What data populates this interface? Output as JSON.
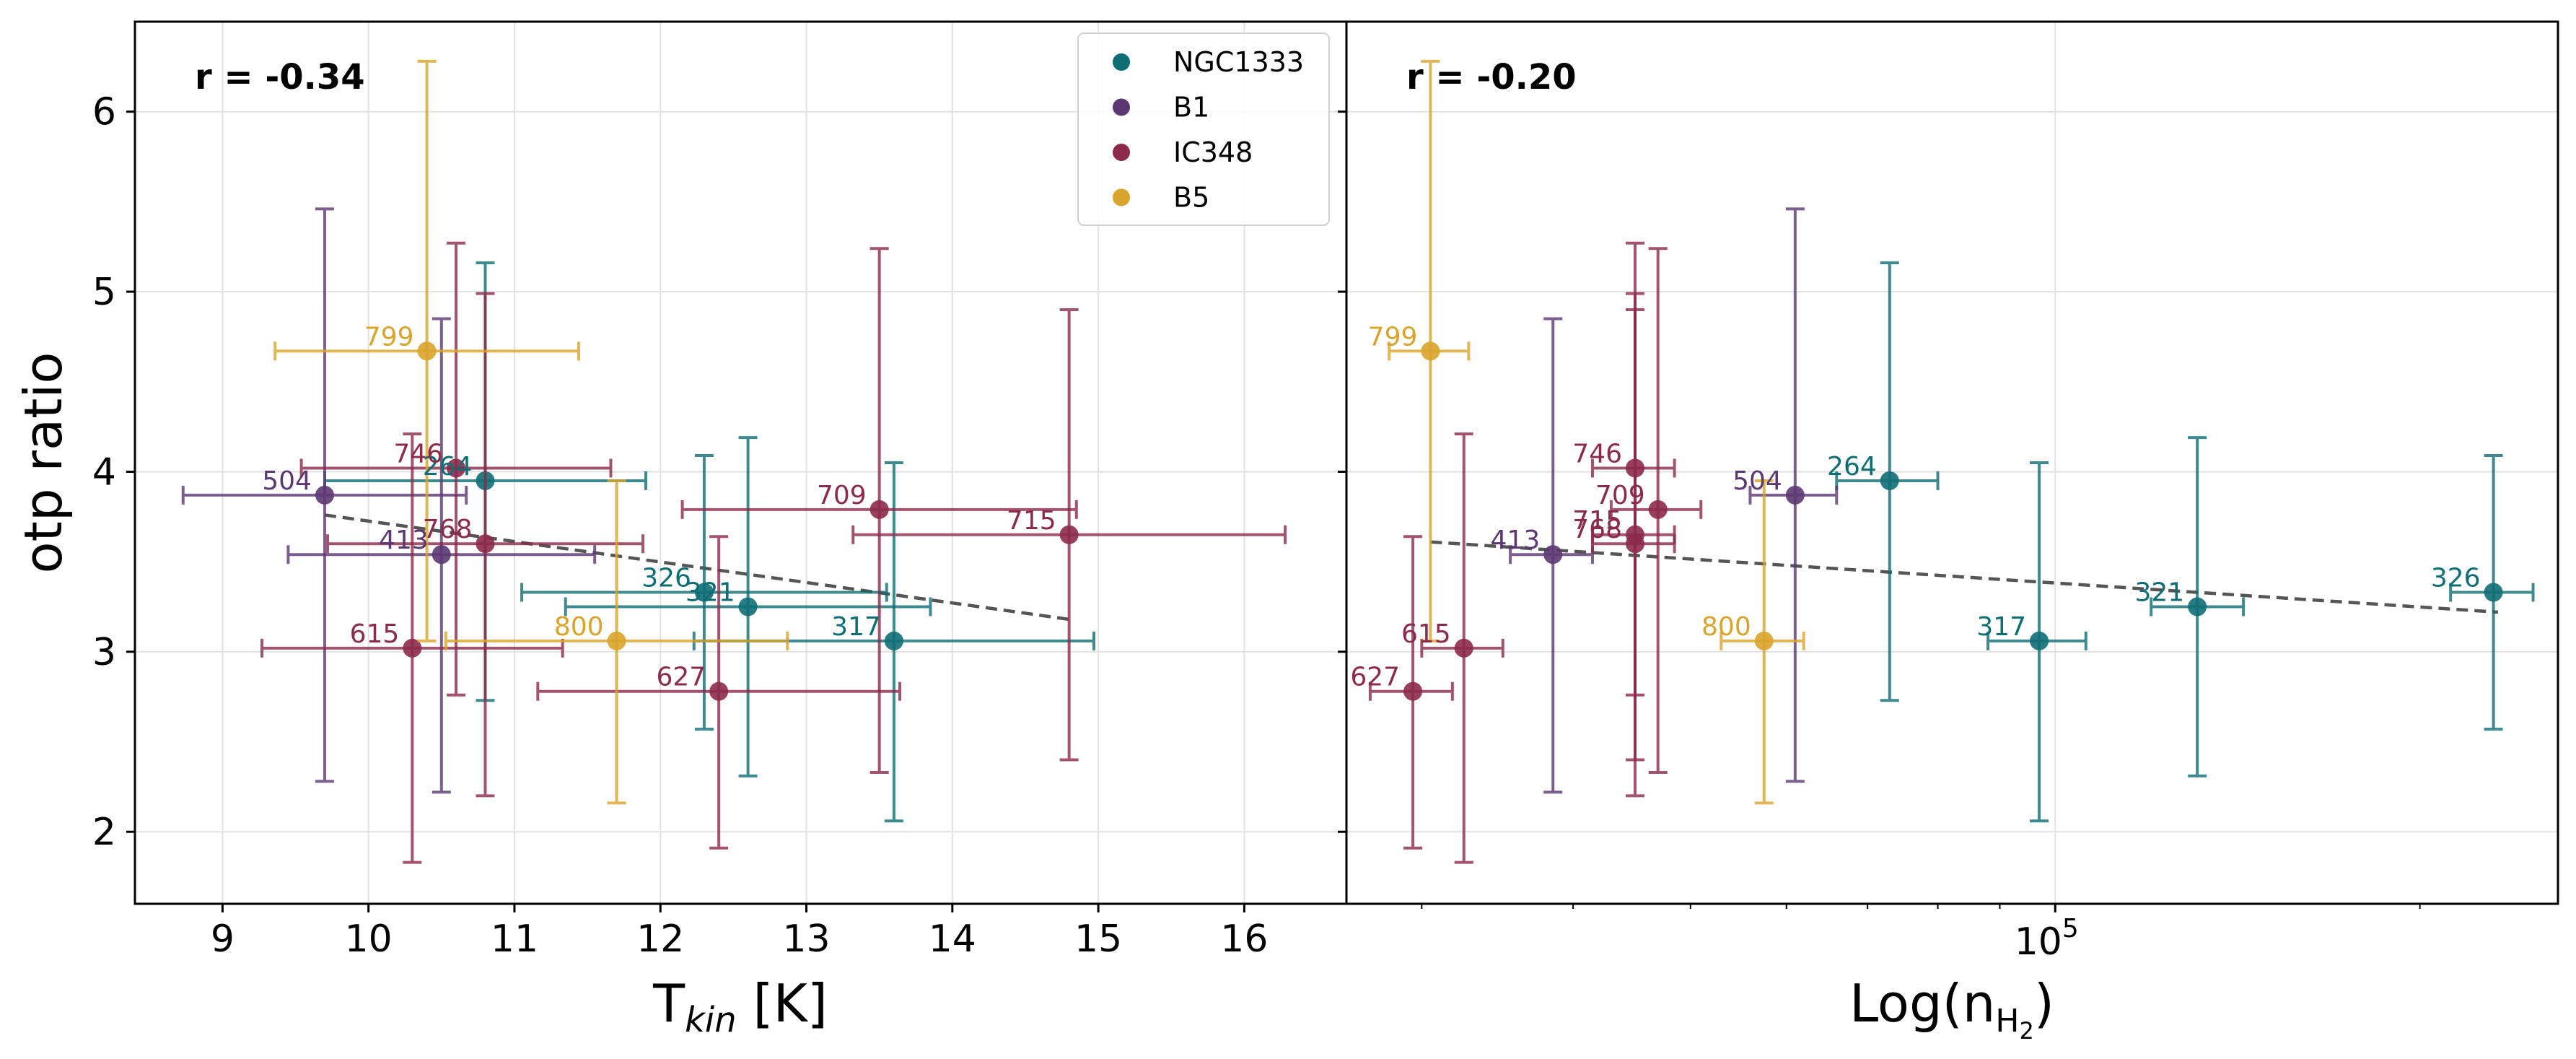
{
  "chart_data": [
    {
      "type": "scatter",
      "panel": "left",
      "xlabel": "T_kin [K]",
      "xlabel_main": "T",
      "xlabel_sub": "kin",
      "xlabel_suffix": " [K]",
      "ylabel": "otp ratio",
      "xlim": [
        8.4,
        16.7
      ],
      "ylim": [
        1.6,
        6.5
      ],
      "xscale": "linear",
      "xticks": [
        9,
        10,
        11,
        12,
        13,
        14,
        15,
        16
      ],
      "xtick_labels": [
        "9",
        "10",
        "11",
        "12",
        "13",
        "14",
        "15",
        "16"
      ],
      "yticks": [
        2,
        3,
        4,
        5,
        6
      ],
      "ytick_labels": [
        "2",
        "3",
        "4",
        "5",
        "6"
      ],
      "grid": true,
      "annotation": "r = -0.34",
      "trend": {
        "x": [
          9.7,
          14.8
        ],
        "y": [
          3.76,
          3.18
        ]
      },
      "series": [
        {
          "name": "NGC1333",
          "color": "#0e6e74",
          "points": [
            {
              "label": "264",
              "x": 10.8,
              "y": 3.95,
              "xerr": 1.1,
              "ylo": 2.73,
              "yhi": 5.16
            },
            {
              "label": "326",
              "x": 12.3,
              "y": 3.33,
              "xerr": 1.25,
              "ylo": 2.57,
              "yhi": 4.09
            },
            {
              "label": "321",
              "x": 12.6,
              "y": 3.25,
              "xerr": 1.25,
              "ylo": 2.31,
              "yhi": 4.19
            },
            {
              "label": "317",
              "x": 13.6,
              "y": 3.06,
              "xerr": 1.37,
              "ylo": 2.06,
              "yhi": 4.05
            }
          ]
        },
        {
          "name": "B1",
          "color": "#5c3872",
          "points": [
            {
              "label": "504",
              "x": 9.7,
              "y": 3.87,
              "xerr": 0.97,
              "ylo": 2.28,
              "yhi": 5.46
            },
            {
              "label": "413",
              "x": 10.5,
              "y": 3.54,
              "xerr": 1.05,
              "ylo": 2.22,
              "yhi": 4.85
            }
          ]
        },
        {
          "name": "IC348",
          "color": "#8c2a4a",
          "points": [
            {
              "label": "746",
              "x": 10.6,
              "y": 4.02,
              "xerr": 1.06,
              "ylo": 2.76,
              "yhi": 5.27
            },
            {
              "label": "768",
              "x": 10.8,
              "y": 3.6,
              "xerr": 1.08,
              "ylo": 2.2,
              "yhi": 4.99
            },
            {
              "label": "709",
              "x": 13.5,
              "y": 3.79,
              "xerr": 1.35,
              "ylo": 2.33,
              "yhi": 5.24
            },
            {
              "label": "715",
              "x": 14.8,
              "y": 3.65,
              "xerr": 1.48,
              "ylo": 2.4,
              "yhi": 4.9
            },
            {
              "label": "615",
              "x": 10.3,
              "y": 3.02,
              "xerr": 1.03,
              "ylo": 1.83,
              "yhi": 4.21
            },
            {
              "label": "627",
              "x": 12.4,
              "y": 2.78,
              "xerr": 1.24,
              "ylo": 1.91,
              "yhi": 3.64
            }
          ]
        },
        {
          "name": "B5",
          "color": "#d9a42c",
          "points": [
            {
              "label": "799",
              "x": 10.4,
              "y": 4.67,
              "xerr": 1.04,
              "ylo": 3.06,
              "yhi": 6.28
            },
            {
              "label": "800",
              "x": 11.7,
              "y": 3.06,
              "xerr": 1.17,
              "ylo": 2.16,
              "yhi": 3.95
            }
          ]
        }
      ]
    },
    {
      "type": "scatter",
      "panel": "right",
      "xlabel": "Log(n_H2)",
      "xlabel_main": "Log(n",
      "xlabel_sub": "H",
      "xlabel_subsub": "2",
      "xlabel_suffix": ")",
      "ylabel": "",
      "xlim": [
        26000,
        260000
      ],
      "ylim": [
        1.6,
        6.5
      ],
      "xscale": "log",
      "xticks": [
        100000
      ],
      "xtick_labels": [
        "10",
        "5"
      ],
      "grid": true,
      "annotation": "r = -0.20",
      "trend": {
        "x": [
          30500,
          232000
        ],
        "y": [
          3.61,
          3.22
        ]
      },
      "series": [
        {
          "name": "NGC1333",
          "color": "#0e6e74",
          "points": [
            {
              "label": "264",
              "x": 73000,
              "y": 3.95,
              "xlo": 66000,
              "xhi": 80000,
              "ylo": 2.73,
              "yhi": 5.16
            },
            {
              "label": "317",
              "x": 97000,
              "y": 3.06,
              "xlo": 88000,
              "xhi": 106000,
              "ylo": 2.06,
              "yhi": 4.05
            },
            {
              "label": "321",
              "x": 131000,
              "y": 3.25,
              "xlo": 120000,
              "xhi": 143000,
              "ylo": 2.31,
              "yhi": 4.19
            },
            {
              "label": "326",
              "x": 230000,
              "y": 3.33,
              "xlo": 212000,
              "xhi": 248000,
              "ylo": 2.57,
              "yhi": 4.09
            }
          ]
        },
        {
          "name": "B1",
          "color": "#5c3872",
          "points": [
            {
              "label": "413",
              "x": 38500,
              "y": 3.54,
              "xlo": 35500,
              "xhi": 41500,
              "ylo": 2.22,
              "yhi": 4.85
            },
            {
              "label": "504",
              "x": 61000,
              "y": 3.87,
              "xlo": 56000,
              "xhi": 66000,
              "ylo": 2.28,
              "yhi": 5.46
            }
          ]
        },
        {
          "name": "IC348",
          "color": "#8c2a4a",
          "points": [
            {
              "label": "746",
              "x": 45000,
              "y": 4.02,
              "xlo": 41500,
              "xhi": 48500,
              "ylo": 2.76,
              "yhi": 5.27
            },
            {
              "label": "709",
              "x": 47000,
              "y": 3.79,
              "xlo": 43000,
              "xhi": 51000,
              "ylo": 2.33,
              "yhi": 5.24
            },
            {
              "label": "715",
              "x": 45000,
              "y": 3.65,
              "xlo": 41500,
              "xhi": 48500,
              "ylo": 2.4,
              "yhi": 4.9
            },
            {
              "label": "768",
              "x": 45000,
              "y": 3.6,
              "xlo": 41500,
              "xhi": 48500,
              "ylo": 2.2,
              "yhi": 4.99
            },
            {
              "label": "615",
              "x": 32500,
              "y": 3.02,
              "xlo": 30000,
              "xhi": 35000,
              "ylo": 1.83,
              "yhi": 4.21
            },
            {
              "label": "627",
              "x": 29500,
              "y": 2.78,
              "xlo": 27200,
              "xhi": 31800,
              "ylo": 1.91,
              "yhi": 3.64
            }
          ]
        },
        {
          "name": "B5",
          "color": "#d9a42c",
          "points": [
            {
              "label": "799",
              "x": 30500,
              "y": 4.67,
              "xlo": 28200,
              "xhi": 32800,
              "ylo": 3.06,
              "yhi": 6.28
            },
            {
              "label": "800",
              "x": 57500,
              "y": 3.06,
              "xlo": 53000,
              "xhi": 62000,
              "ylo": 2.16,
              "yhi": 3.95
            }
          ]
        }
      ]
    }
  ],
  "legend": {
    "location": "top-right of left panel",
    "entries": [
      {
        "name": "NGC1333",
        "color": "#0e6e74"
      },
      {
        "name": "B1",
        "color": "#5c3872"
      },
      {
        "name": "IC348",
        "color": "#8c2a4a"
      },
      {
        "name": "B5",
        "color": "#d9a42c"
      }
    ]
  }
}
